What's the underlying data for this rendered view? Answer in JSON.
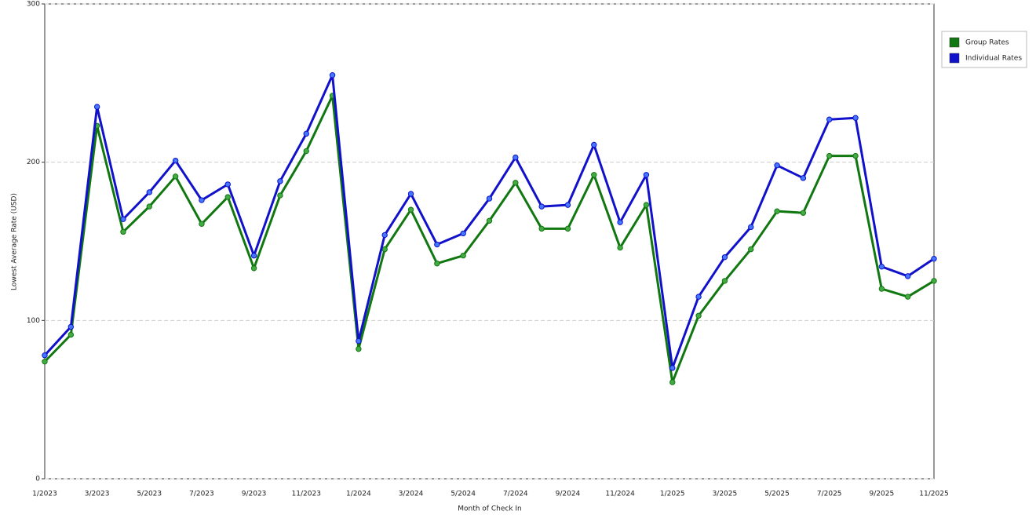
{
  "chart_data": {
    "type": "line",
    "x_label": "Month of Check In",
    "y_label": "Lowest Average Rate (USD)",
    "categories": [
      "1/2023",
      null,
      "3/2023",
      null,
      "5/2023",
      null,
      "7/2023",
      null,
      "9/2023",
      null,
      "11/2023",
      null,
      "1/2024",
      null,
      "3/2024",
      null,
      "5/2024",
      null,
      "7/2024",
      null,
      "9/2024",
      null,
      "11/2024",
      null,
      "1/2025",
      null,
      "3/2025",
      null,
      "5/2025",
      null,
      "7/2025",
      null,
      "9/2025",
      null,
      "11/2025"
    ],
    "series": [
      {
        "name": "Group Rates",
        "color": "#117711",
        "values": [
          74,
          91,
          223,
          156,
          172,
          191,
          161,
          178,
          133,
          179,
          207,
          242,
          82,
          145,
          170,
          136,
          141,
          163,
          187,
          158,
          158,
          192,
          146,
          173,
          61,
          103,
          125,
          145,
          169,
          168,
          204,
          204,
          120,
          115,
          125
        ]
      },
      {
        "name": "Individual Rates",
        "color": "#1111cc",
        "values": [
          78,
          96,
          235,
          164,
          181,
          201,
          176,
          186,
          141,
          188,
          218,
          255,
          87,
          154,
          180,
          148,
          155,
          177,
          203,
          172,
          173,
          211,
          162,
          192,
          70,
          115,
          140,
          159,
          198,
          190,
          227,
          228,
          134,
          128,
          139
        ]
      }
    ],
    "ylim": [
      0,
      300
    ],
    "yticks": [
      0,
      100,
      200,
      300
    ],
    "grid": true,
    "legend": "right"
  }
}
